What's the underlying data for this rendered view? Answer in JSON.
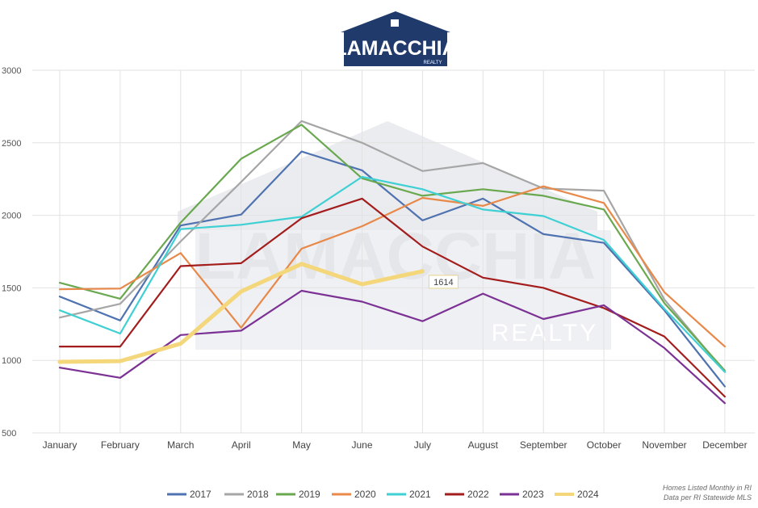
{
  "logo": {
    "brand": "LAMACCHIA",
    "tagline": "REALTY"
  },
  "watermark": {
    "brand": "LAMACCHIA",
    "tagline": "REALTY"
  },
  "source_note": {
    "line1": "Homes Listed Monthly in RI",
    "line2": "Data per RI Statewide MLS"
  },
  "chart_data": {
    "type": "line",
    "title": "",
    "xlabel": "",
    "ylabel": "",
    "ylim": [
      500,
      3000
    ],
    "yticks": [
      500,
      1000,
      1500,
      2000,
      2500,
      3000
    ],
    "grid": "horizontal and vertical",
    "legend_position": "bottom",
    "categories": [
      "January",
      "February",
      "March",
      "April",
      "May",
      "June",
      "July",
      "August",
      "September",
      "October",
      "November",
      "December"
    ],
    "series": [
      {
        "name": "2017",
        "color": "#4f72b0",
        "values": [
          1440,
          1275,
          1930,
          2005,
          2440,
          2310,
          1965,
          2115,
          1870,
          1810,
          1345,
          820
        ]
      },
      {
        "name": "2018",
        "color": "#a6a6a6",
        "values": [
          1295,
          1390,
          1820,
          2230,
          2650,
          2500,
          2305,
          2360,
          2185,
          2170,
          1420,
          920
        ]
      },
      {
        "name": "2019",
        "color": "#6aa84f",
        "values": [
          1535,
          1425,
          1950,
          2390,
          2625,
          2255,
          2135,
          2180,
          2135,
          2040,
          1395,
          930
        ]
      },
      {
        "name": "2020",
        "color": "#e8894a",
        "values": [
          1490,
          1495,
          1740,
          1225,
          1770,
          1925,
          2120,
          2065,
          2200,
          2085,
          1470,
          1095
        ]
      },
      {
        "name": "2021",
        "color": "#3fd0d4",
        "values": [
          1345,
          1185,
          1905,
          1935,
          1990,
          2265,
          2180,
          2040,
          1995,
          1830,
          1355,
          920
        ]
      },
      {
        "name": "2022",
        "color": "#a31d1d",
        "values": [
          1095,
          1095,
          1650,
          1670,
          1980,
          2115,
          1785,
          1570,
          1500,
          1360,
          1165,
          750
        ]
      },
      {
        "name": "2023",
        "color": "#7b3294",
        "values": [
          950,
          880,
          1175,
          1205,
          1480,
          1405,
          1270,
          1460,
          1285,
          1380,
          1085,
          705
        ]
      },
      {
        "name": "2024",
        "color": "#f3d77a",
        "values": [
          990,
          995,
          1115,
          1475,
          1665,
          1525,
          1614,
          null,
          null,
          null,
          null,
          null
        ]
      }
    ],
    "annotations": [
      {
        "series": "2024",
        "category": "July",
        "text": "1614"
      }
    ]
  }
}
